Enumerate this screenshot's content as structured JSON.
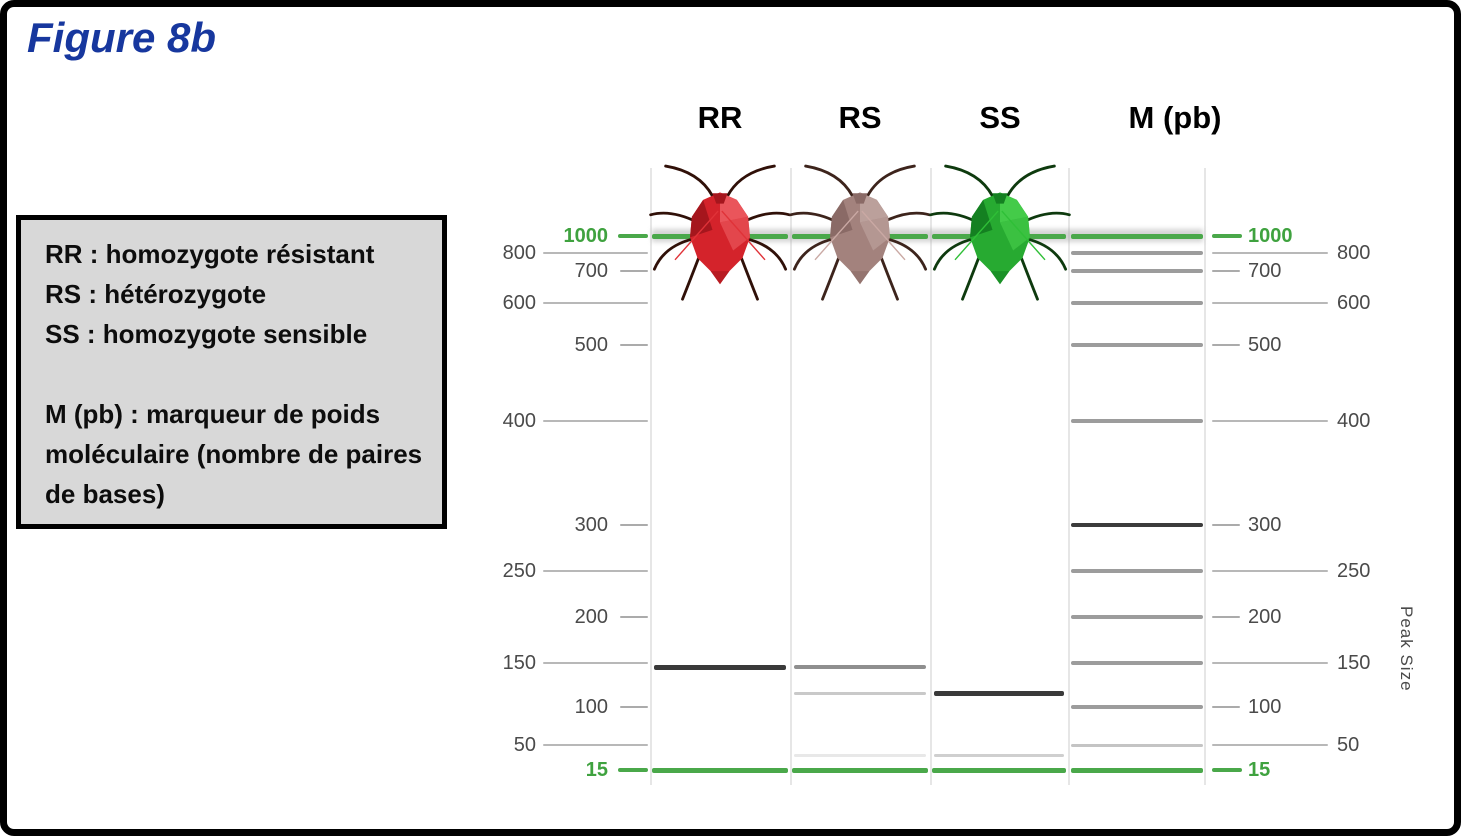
{
  "title": "Figure 8b",
  "colors": {
    "title": "#17379e",
    "legend_bg": "#d8d8d8",
    "marker_green": "#4aa84a",
    "green_text": "#3fa23f",
    "ladder_line": "#b8b8b8",
    "ladder_tick": "#ababab"
  },
  "legend": {
    "lines": [
      "RR : homozygote résistant",
      "RS : hétérozygote",
      "SS : homozygote sensible"
    ],
    "marker_note": "M (pb) : marqueur de poids moléculaire (nombre de paires de bases)"
  },
  "gel": {
    "column_headers": [
      "RR",
      "RS",
      "SS",
      "M (pb)"
    ],
    "axis_label_right": "Peak Size",
    "alignment_markers_bp": [
      1000,
      15
    ],
    "ladder": [
      {
        "label": "1000",
        "tier": "inner",
        "green": true,
        "marker_band": "green"
      },
      {
        "label": "800",
        "tier": "outer",
        "green": false,
        "marker_band": "gray"
      },
      {
        "label": "700",
        "tier": "inner",
        "green": false,
        "marker_band": "gray"
      },
      {
        "label": "600",
        "tier": "outer",
        "green": false,
        "marker_band": "gray"
      },
      {
        "label": "500",
        "tier": "inner",
        "green": false,
        "marker_band": "gray"
      },
      {
        "label": "400",
        "tier": "outer",
        "green": false,
        "marker_band": "gray"
      },
      {
        "label": "300",
        "tier": "inner",
        "green": false,
        "marker_band": "marker_dark"
      },
      {
        "label": "250",
        "tier": "outer",
        "green": false,
        "marker_band": "gray"
      },
      {
        "label": "200",
        "tier": "inner",
        "green": false,
        "marker_band": "gray"
      },
      {
        "label": "150",
        "tier": "outer",
        "green": false,
        "marker_band": "gray"
      },
      {
        "label": "100",
        "tier": "inner",
        "green": false,
        "marker_band": "gray"
      },
      {
        "label": "50",
        "tier": "outer",
        "green": false,
        "marker_band": "marker_light"
      },
      {
        "label": "15",
        "tier": "inner",
        "green": true,
        "marker_band": "green"
      }
    ],
    "band_colors": {
      "dark": "#3a3a3a",
      "medium": "#8f8f8f",
      "light": "#c9c9c9",
      "faint": "#e8e8e8",
      "lightgray": "#cfcfcf",
      "gray": "#9c9c9c",
      "marker_dark": "#3c3c3c",
      "marker_light": "#c4c4c4"
    },
    "lanes": [
      {
        "id": "RR",
        "icon": "aphid-icon-red",
        "aphid": {
          "body": "#d4232b",
          "light": "#ea555b",
          "dark": "#a5161d",
          "limbs": "#301008",
          "accent": "#e03238"
        },
        "bands": [
          {
            "bp": 144,
            "shade": "dark"
          }
        ]
      },
      {
        "id": "RS",
        "icon": "aphid-icon-mauve",
        "aphid": {
          "body": "#a3827d",
          "light": "#bba09b",
          "dark": "#8a6a66",
          "limbs": "#3d241c",
          "accent": "#caa9a4"
        },
        "bands": [
          {
            "bp": 144,
            "shade": "medium"
          },
          {
            "bp": 113,
            "shade": "light"
          },
          {
            "bp": 30,
            "shade": "faint"
          }
        ]
      },
      {
        "id": "SS",
        "icon": "aphid-icon-green",
        "aphid": {
          "body": "#27aa31",
          "light": "#44cb49",
          "dark": "#148021",
          "limbs": "#0e3a0e",
          "accent": "#2fbf37"
        },
        "bands": [
          {
            "bp": 113,
            "shade": "dark"
          },
          {
            "bp": 30,
            "shade": "lightgray"
          }
        ]
      },
      {
        "id": "M",
        "icon": null,
        "bands": []
      }
    ]
  }
}
